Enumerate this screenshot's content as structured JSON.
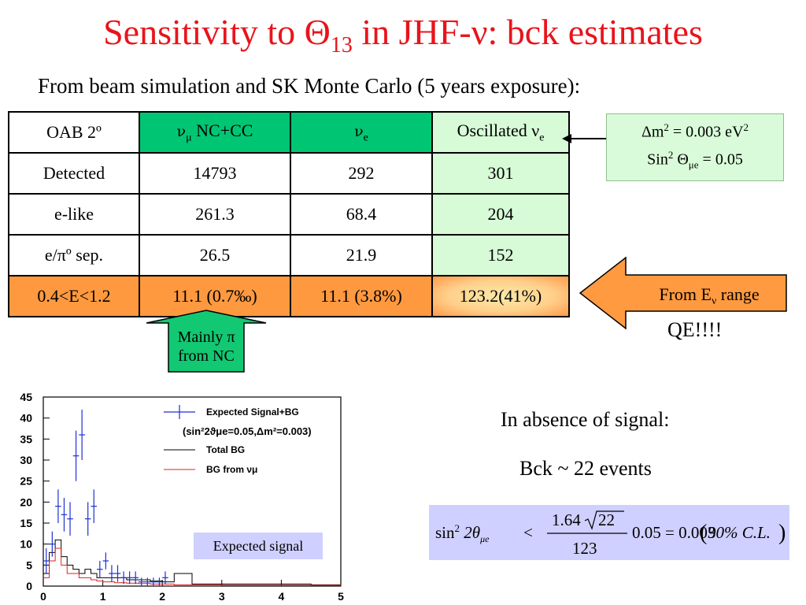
{
  "title": {
    "prefix": "Sensitivity to Θ",
    "sub": "13",
    "suffix": " in JHF-ν: bck estimates"
  },
  "subtitle": "From beam simulation and SK Monte Carlo  (5 years exposure):",
  "table": {
    "header": {
      "c0": "OAB 2º",
      "c1_pre": "ν",
      "c1_sub": "μ",
      "c1_post": " NC+CC",
      "c2_pre": "ν",
      "c2_sub": "e",
      "c3_pre": "Oscillated ν",
      "c3_sub": "e"
    },
    "rows": [
      {
        "label": "Detected",
        "numu": "14793",
        "nue": "292",
        "osc": "301"
      },
      {
        "label": "e-like",
        "numu": "261.3",
        "nue": "68.4",
        "osc": "204"
      },
      {
        "label": "e/πº sep.",
        "numu": "26.5",
        "nue": "21.9",
        "osc": "152"
      },
      {
        "label": "0.4<E<1.2",
        "numu": "11.1 (0.7‰)",
        "nue": "11.1 (3.8%)",
        "osc": "123.2(41%)"
      }
    ]
  },
  "params": {
    "dm2_pre": "Δm",
    "dm2_sup": "2",
    "dm2_mid": " = 0.003 eV",
    "dm2_sup2": "2",
    "sin_pre": "Sin",
    "sin_sup": "2",
    "sin_mid": " Θ",
    "sin_sub": "μe",
    "sin_post": " = 0.05"
  },
  "arrows": {
    "mainly_line1": "Mainly π",
    "mainly_line2": "from NC",
    "from_e_pre": "From E",
    "from_e_sub": "ν",
    "from_e_post": " range"
  },
  "qe_text": "QE!!!!",
  "absence_text": "In absence of signal:",
  "bck_text": "Bck ~ 22 events",
  "equation": {
    "lhs": "sin",
    "lhs_sup": "2",
    "lhs_theta": " 2θ",
    "lhs_sub": "μe",
    "lt": "<",
    "num": "1.64",
    "sqrt": "22",
    "den": "123",
    "rhs": "0.05 = 0.003",
    "cl": "90% C.L."
  },
  "plot": {
    "legend": [
      "Expected Signal+BG",
      "(sin²2ϑμe=0.05,Δm²=0.003)",
      "Total BG",
      "BG from νμ"
    ],
    "box_label": "Expected signal"
  },
  "chart_data": {
    "type": "scatter",
    "xlim": [
      0,
      5
    ],
    "ylim": [
      0,
      45
    ],
    "xticks": [
      "0",
      "1",
      "2",
      "3",
      "4",
      "5"
    ],
    "yticks": [
      "0",
      "5",
      "10",
      "15",
      "20",
      "25",
      "30",
      "35",
      "40",
      "45"
    ],
    "series": [
      {
        "name": "Expected Signal+BG",
        "x": [
          0.05,
          0.15,
          0.25,
          0.35,
          0.45,
          0.55,
          0.65,
          0.75,
          0.85,
          0.95,
          1.05,
          1.15,
          1.25,
          1.35,
          1.45,
          1.55,
          1.65,
          1.75,
          1.85,
          1.95,
          2.05
        ],
        "y": [
          6,
          10,
          19,
          17,
          16,
          31,
          36,
          16,
          19,
          4,
          6,
          3,
          3,
          2,
          2,
          2,
          1,
          1,
          1,
          1,
          2
        ],
        "err": [
          3,
          3,
          4,
          4,
          4,
          6,
          6,
          4,
          4,
          2,
          2,
          2,
          2,
          1.5,
          1.5,
          1.5,
          1,
          1,
          1,
          1,
          1.5
        ]
      },
      {
        "name": "Total BG",
        "x": [
          0,
          0.1,
          0.2,
          0.3,
          0.4,
          0.5,
          0.6,
          0.7,
          0.8,
          0.9,
          1.0,
          1.2,
          1.4,
          1.6,
          1.8,
          2.0,
          2.2,
          2.5,
          3.0,
          3.5,
          4.0,
          4.5,
          5.0
        ],
        "y": [
          3,
          8,
          11,
          7,
          5,
          4,
          3,
          4,
          3,
          2,
          2,
          2,
          1.5,
          1.5,
          1.2,
          1,
          3,
          0.5,
          0.5,
          0.5,
          0.5,
          0.3,
          0.3
        ]
      },
      {
        "name": "BG from νμ",
        "x": [
          0,
          0.1,
          0.2,
          0.3,
          0.4,
          0.5,
          0.6,
          0.7,
          0.8,
          0.9,
          1.0,
          1.2,
          1.4,
          1.6,
          1.8,
          2.0,
          2.2,
          2.5,
          3.0,
          5.0
        ],
        "y": [
          2,
          6,
          9,
          5,
          3,
          3,
          2,
          2,
          1.5,
          1.2,
          1,
          0.8,
          0.7,
          0.6,
          0.5,
          0.5,
          0.3,
          0.3,
          0.2,
          0.1
        ]
      }
    ]
  }
}
